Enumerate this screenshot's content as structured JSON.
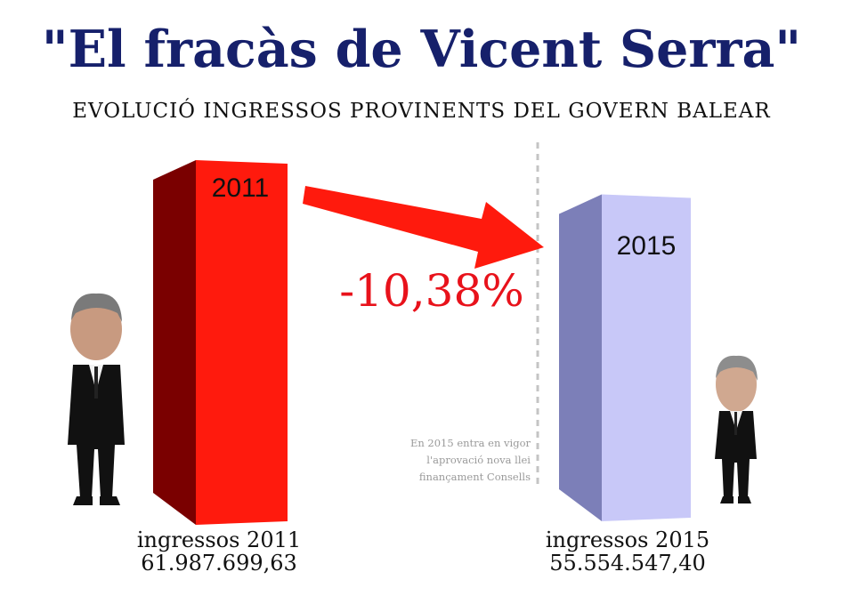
{
  "chart_data": {
    "type": "bar",
    "title": "\"El fracàs de Vicent Serra\"",
    "subtitle": "EVOLUCIÓ INGRESSOS PROVINENTS DEL GOVERN BALEAR",
    "categories": [
      "2011",
      "2015"
    ],
    "values": [
      61987699.63,
      55554547.4
    ],
    "value_labels": [
      "61.987.699,63",
      "55.554.547,40"
    ],
    "captions": [
      "ingressos 2011",
      "ingressos 2015"
    ],
    "change_label": "-10,38%",
    "annotation": [
      "En 2015 entra en vigor",
      "l'aprovació nova llei",
      "finançament Consells"
    ],
    "colors": {
      "title": "#16206b",
      "bar_2011_front": "#ff1a0d",
      "bar_2011_side": "#7a0000",
      "bar_2015_front": "#c8c8f8",
      "bar_2015_side": "#7c7fb8",
      "arrow": "#ff1a0d",
      "change_label": "#e8121b"
    },
    "grid": false,
    "legend": "none"
  }
}
